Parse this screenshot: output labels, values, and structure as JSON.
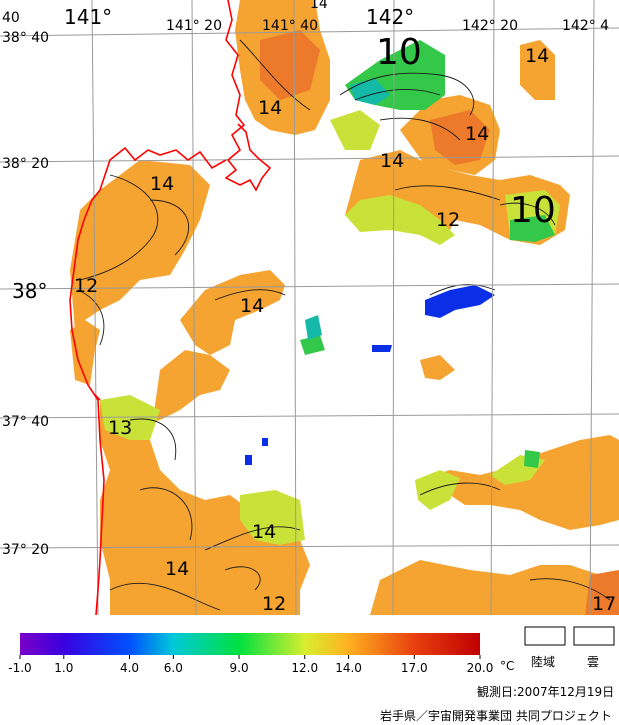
{
  "map": {
    "coordinate_labels": {
      "top": [
        "141°",
        "141° 20",
        "141° 40",
        "142°",
        "142° 20",
        "142° 4"
      ],
      "left": [
        "38° 40",
        "38° 20",
        "38°",
        "37° 40",
        "37° 20"
      ],
      "corner_fragment": "40",
      "top_fragment": "14"
    },
    "isotherm_labels": [
      {
        "text": "10",
        "size": "big"
      },
      {
        "text": "10",
        "size": "big"
      },
      {
        "text": "14",
        "size": "normal"
      },
      {
        "text": "14",
        "size": "normal"
      },
      {
        "text": "14",
        "size": "normal"
      },
      {
        "text": "14",
        "size": "normal"
      },
      {
        "text": "14",
        "size": "normal"
      },
      {
        "text": "14",
        "size": "normal"
      },
      {
        "text": "14",
        "size": "normal"
      },
      {
        "text": "14",
        "size": "normal"
      },
      {
        "text": "12",
        "size": "normal"
      },
      {
        "text": "12",
        "size": "normal"
      },
      {
        "text": "12",
        "size": "normal"
      },
      {
        "text": "13",
        "size": "normal"
      },
      {
        "text": "17",
        "size": "normal"
      }
    ]
  },
  "colorbar": {
    "stops": [
      {
        "value": -1.0,
        "color": "#7a00c8"
      },
      {
        "value": 1.0,
        "color": "#3a00e0"
      },
      {
        "value": 4.0,
        "color": "#0050ff"
      },
      {
        "value": 6.0,
        "color": "#00c8d8"
      },
      {
        "value": 9.0,
        "color": "#00e040"
      },
      {
        "value": 12.0,
        "color": "#d8ef30"
      },
      {
        "value": 14.0,
        "color": "#ffb020"
      },
      {
        "value": 17.0,
        "color": "#e84010"
      },
      {
        "value": 20.0,
        "color": "#c00000"
      }
    ],
    "tick_labels": [
      "-1.0",
      "1.0",
      "4.0",
      "6.0",
      "9.0",
      "12.0",
      "14.0",
      "17.0",
      "20.0"
    ],
    "unit": "°C"
  },
  "legend": {
    "land_label": "陸域",
    "cloud_label": "雲"
  },
  "observation_date": "観測日:2007年12月19日",
  "credit": "岩手県／宇宙開発事業団 共同プロジェクト"
}
